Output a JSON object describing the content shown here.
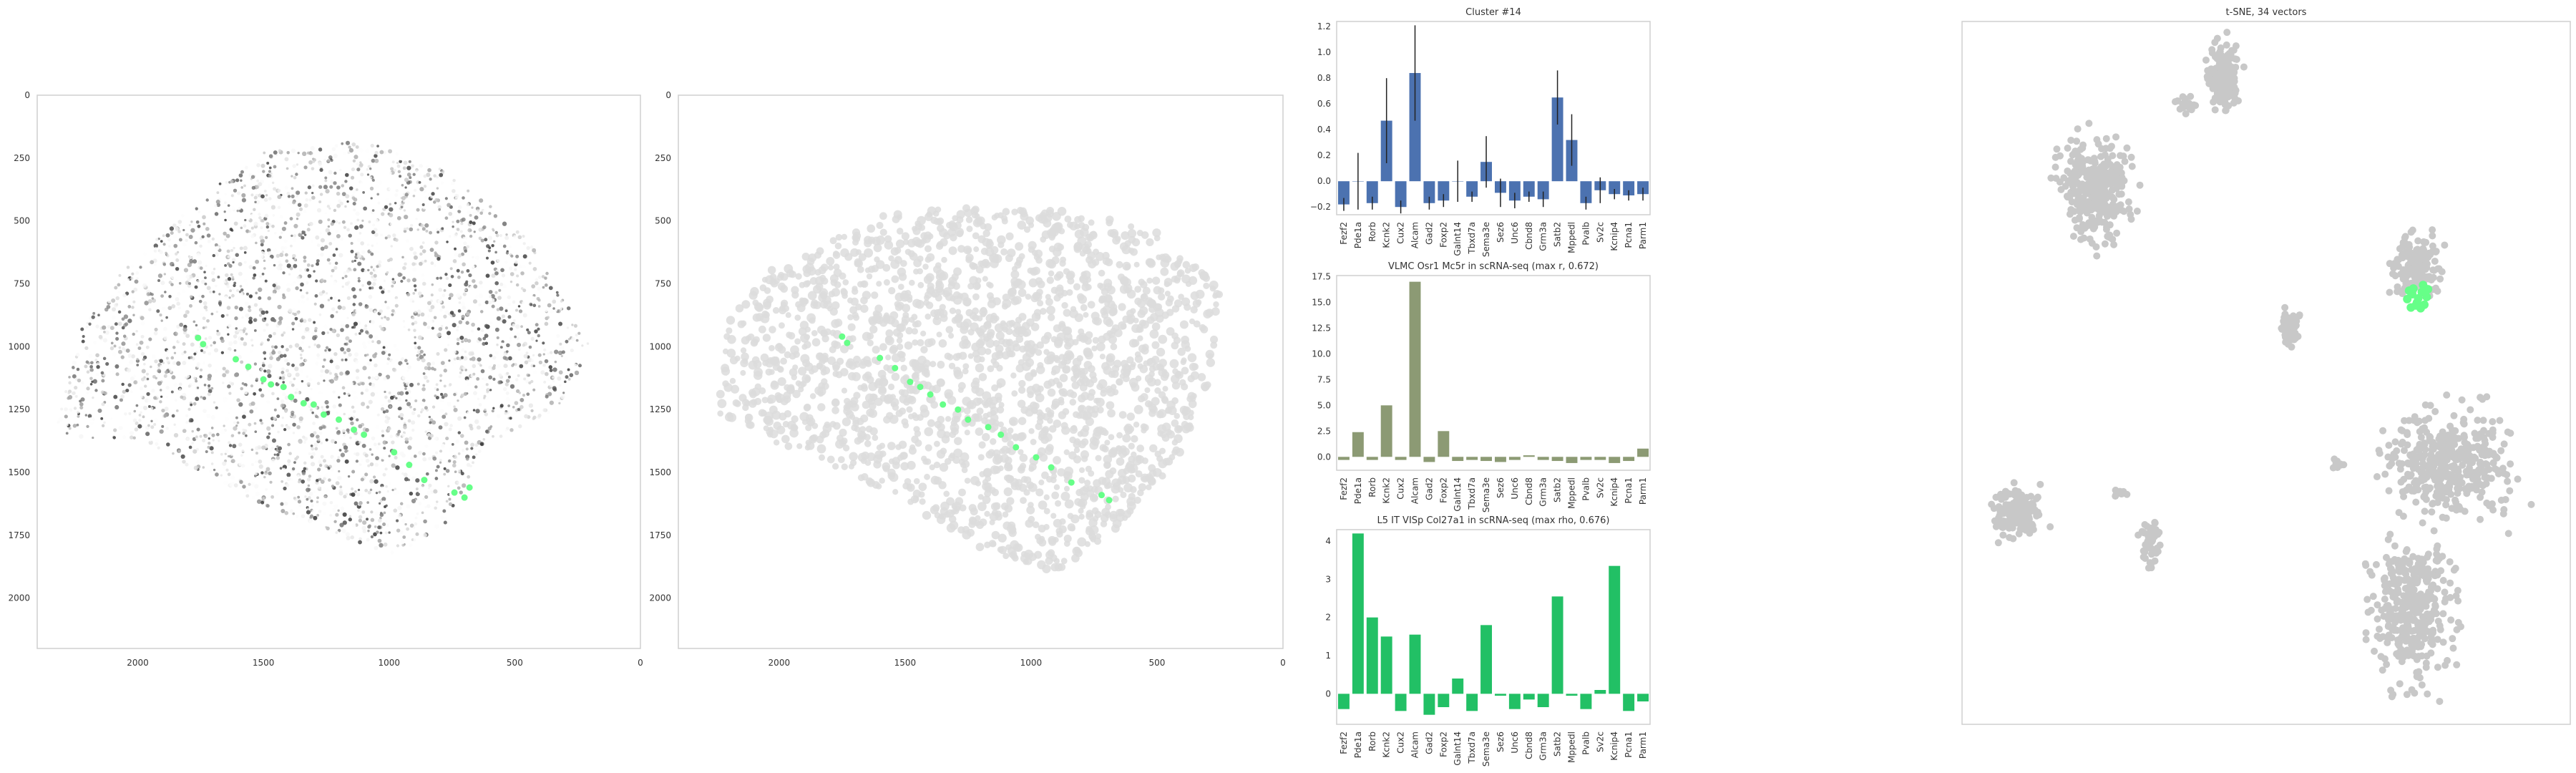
{
  "colors": {
    "highlight": "#66ff88",
    "tissue_points": "#c9c9c9",
    "cluster_bar": "#4c72b0",
    "vlmc_bar": "#8c9a74",
    "l5_bar": "#22c065",
    "tsne_points": "#c8c8c8"
  },
  "chart_data": [
    {
      "type": "scatter",
      "title": "",
      "description": "spatial expression map with highlighted cluster cells",
      "xlim": [
        2400,
        0
      ],
      "ylim": [
        2200,
        0
      ],
      "x_ticks": [
        "2000",
        "1500",
        "1000",
        "500",
        "0"
      ],
      "y_ticks": [
        "0",
        "250",
        "500",
        "750",
        "1000",
        "1250",
        "1500",
        "1750",
        "2000"
      ],
      "grid": false,
      "series": [
        {
          "role": "highlighted cells",
          "points": [
            [
              1760,
              965
            ],
            [
              1740,
              990
            ],
            [
              1610,
              1050
            ],
            [
              1560,
              1080
            ],
            [
              1500,
              1130
            ],
            [
              1470,
              1150
            ],
            [
              1420,
              1160
            ],
            [
              1390,
              1200
            ],
            [
              1340,
              1225
            ],
            [
              1300,
              1230
            ],
            [
              1260,
              1270
            ],
            [
              1200,
              1290
            ],
            [
              1140,
              1330
            ],
            [
              1100,
              1350
            ],
            [
              980,
              1420
            ],
            [
              920,
              1470
            ],
            [
              860,
              1530
            ],
            [
              740,
              1580
            ],
            [
              700,
              1600
            ],
            [
              680,
              1560
            ]
          ]
        }
      ]
    },
    {
      "type": "scatter",
      "title": "",
      "description": "segmented cells with highlighted cluster cells",
      "xlim": [
        2400,
        0
      ],
      "ylim": [
        2200,
        0
      ],
      "x_ticks": [
        "2000",
        "1500",
        "1000",
        "500",
        "0"
      ],
      "y_ticks": [
        "0",
        "250",
        "500",
        "750",
        "1000",
        "1250",
        "1500",
        "1750",
        "2000"
      ],
      "grid": false,
      "series": [
        {
          "role": "highlighted cells",
          "points": [
            [
              1750,
              960
            ],
            [
              1730,
              985
            ],
            [
              1600,
              1045
            ],
            [
              1540,
              1085
            ],
            [
              1480,
              1140
            ],
            [
              1440,
              1160
            ],
            [
              1400,
              1190
            ],
            [
              1350,
              1230
            ],
            [
              1290,
              1250
            ],
            [
              1250,
              1290
            ],
            [
              1170,
              1320
            ],
            [
              1120,
              1350
            ],
            [
              1060,
              1400
            ],
            [
              980,
              1440
            ],
            [
              920,
              1480
            ],
            [
              840,
              1540
            ],
            [
              720,
              1590
            ],
            [
              690,
              1610
            ]
          ]
        }
      ]
    },
    {
      "type": "bar",
      "title": "Cluster #14",
      "xlabel": "",
      "ylabel": "",
      "categories": [
        "Fezf2",
        "Pde1a",
        "Rorb",
        "Kcnk2",
        "Cux2",
        "Alcam",
        "Gad2",
        "Foxp2",
        "Galnt14",
        "Tbxd7a",
        "Sema3e",
        "Sez6",
        "Unc6",
        "Cbnd8",
        "Grm3a",
        "Satb2",
        "Mppedl",
        "Pvalb",
        "Sv2c",
        "Kcnip4",
        "Pcna1",
        "Parm1"
      ],
      "values": [
        -0.18,
        0.0,
        -0.17,
        0.47,
        -0.2,
        0.84,
        -0.17,
        -0.15,
        0.0,
        -0.12,
        0.15,
        -0.09,
        -0.15,
        -0.12,
        -0.14,
        0.65,
        0.32,
        -0.17,
        -0.07,
        -0.1,
        -0.11,
        -0.1
      ],
      "errors": [
        0.05,
        0.22,
        0.05,
        0.33,
        0.05,
        0.37,
        0.05,
        0.05,
        0.16,
        0.04,
        0.2,
        0.11,
        0.06,
        0.04,
        0.06,
        0.21,
        0.2,
        0.05,
        0.1,
        0.04,
        0.04,
        0.05
      ],
      "ylim": [
        -0.26,
        1.24
      ],
      "y_ticks": [
        -0.2,
        0.0,
        0.2,
        0.4,
        0.6,
        0.8,
        1.0,
        1.2
      ],
      "grid": false
    },
    {
      "type": "bar",
      "title": "VLMC Osr1 Mc5r in scRNA-seq (max r, 0.672)",
      "xlabel": "",
      "ylabel": "",
      "categories": [
        "Fezf2",
        "Pde1a",
        "Rorb",
        "Kcnk2",
        "Cux2",
        "Alcam",
        "Gad2",
        "Foxp2",
        "Galnt14",
        "Tbxd7a",
        "Sema3e",
        "Sez6",
        "Unc6",
        "Cbnd8",
        "Grm3a",
        "Satb2",
        "Mppedl",
        "Pvalb",
        "Sv2c",
        "Kcnip4",
        "Pcna1",
        "Parm1"
      ],
      "values": [
        -0.3,
        2.4,
        -0.3,
        5.0,
        -0.3,
        17.0,
        -0.5,
        2.5,
        -0.4,
        -0.3,
        -0.4,
        -0.5,
        -0.3,
        0.15,
        -0.3,
        -0.4,
        -0.6,
        -0.3,
        -0.3,
        -0.6,
        -0.4,
        0.8
      ],
      "ylim": [
        -1.3,
        17.6
      ],
      "y_ticks": [
        0.0,
        2.5,
        5.0,
        7.5,
        10.0,
        12.5,
        15.0,
        17.5
      ],
      "grid": false
    },
    {
      "type": "bar",
      "title": "L5 IT VISp Col27a1 in scRNA-seq (max rho, 0.676)",
      "xlabel": "",
      "ylabel": "",
      "categories": [
        "Fezf2",
        "Pde1a",
        "Rorb",
        "Kcnk2",
        "Cux2",
        "Alcam",
        "Gad2",
        "Foxp2",
        "Galnt14",
        "Tbxd7a",
        "Sema3e",
        "Sez6",
        "Unc6",
        "Cbnd8",
        "Grm3a",
        "Satb2",
        "Mppedl",
        "Pvalb",
        "Sv2c",
        "Kcnip4",
        "Pcna1",
        "Parm1"
      ],
      "values": [
        -0.4,
        4.2,
        2.0,
        1.5,
        -0.45,
        1.55,
        -0.55,
        -0.35,
        0.4,
        -0.45,
        1.8,
        -0.05,
        -0.4,
        -0.15,
        -0.35,
        2.55,
        -0.05,
        -0.4,
        0.1,
        3.35,
        -0.45,
        -0.2
      ],
      "ylim": [
        -0.8,
        4.3
      ],
      "y_ticks": [
        0,
        1,
        2,
        3,
        4
      ],
      "grid": false
    },
    {
      "type": "scatter",
      "title": "t-SNE, 34 vectors",
      "description": "t-SNE embedding with highlighted cluster",
      "xlim": [
        0,
        100
      ],
      "ylim": [
        0,
        100
      ],
      "axes_ticks": false,
      "grid": false,
      "series": [
        {
          "role": "point clusters",
          "blobs": [
            {
              "cx": 43,
              "cy": 92,
              "rx": 2.3,
              "ry": 4,
              "count": 170
            },
            {
              "cx": 37,
              "cy": 88,
              "rx": 1.6,
              "ry": 1.0,
              "count": 30
            },
            {
              "cx": 22,
              "cy": 76,
              "rx": 5.0,
              "ry": 6.0,
              "count": 360
            },
            {
              "cx": 75,
              "cy": 65,
              "rx": 3.3,
              "ry": 3.8,
              "count": 180
            },
            {
              "cx": 54,
              "cy": 56,
              "rx": 1.4,
              "ry": 2.2,
              "count": 60
            },
            {
              "cx": 80,
              "cy": 37,
              "rx": 8.5,
              "ry": 6.0,
              "count": 420
            },
            {
              "cx": 74,
              "cy": 17,
              "rx": 5.5,
              "ry": 9.0,
              "count": 380
            },
            {
              "cx": 9,
              "cy": 30,
              "rx": 3.5,
              "ry": 2.8,
              "count": 150
            },
            {
              "cx": 31,
              "cy": 26,
              "rx": 1.6,
              "ry": 2.8,
              "count": 50
            },
            {
              "cx": 26,
              "cy": 33,
              "rx": 0.7,
              "ry": 0.7,
              "count": 8
            },
            {
              "cx": 62,
              "cy": 37,
              "rx": 0.8,
              "ry": 0.8,
              "count": 10
            }
          ]
        },
        {
          "role": "highlighted cluster",
          "points": [
            [
              73.2,
              60.5
            ],
            [
              74.0,
              61.2
            ],
            [
              74.8,
              60.0
            ],
            [
              75.6,
              61.5
            ],
            [
              76.4,
              60.8
            ],
            [
              73.8,
              59.3
            ],
            [
              74.6,
              59.6
            ],
            [
              75.4,
              59.2
            ],
            [
              76.0,
              59.7
            ],
            [
              75.0,
              60.6
            ],
            [
              73.5,
              61.7
            ],
            [
              76.6,
              61.9
            ],
            [
              74.2,
              62.0
            ],
            [
              75.8,
              62.5
            ]
          ]
        }
      ]
    }
  ]
}
